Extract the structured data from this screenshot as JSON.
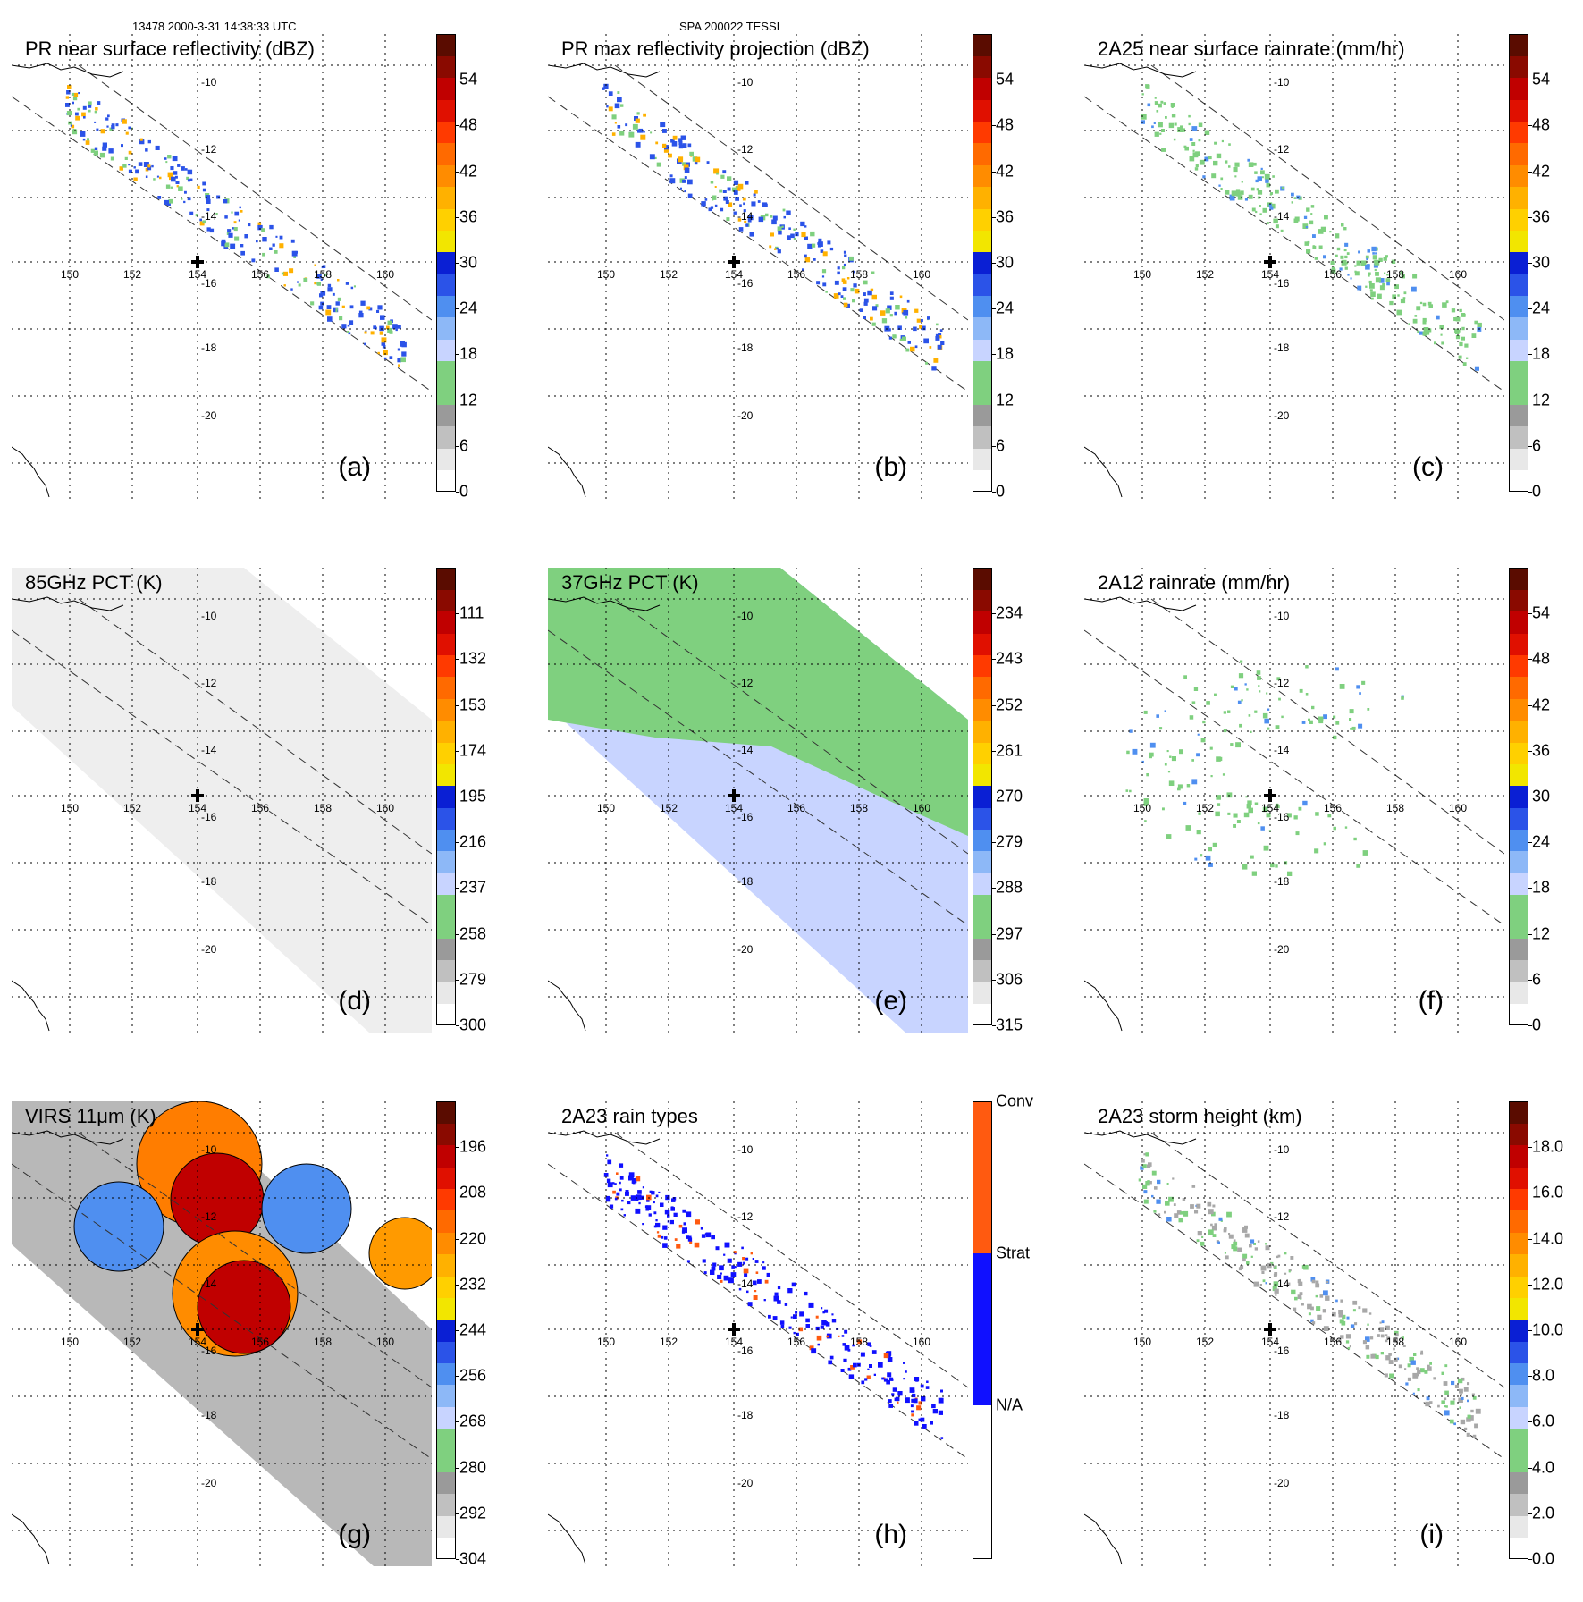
{
  "header": {
    "left": "13478 2000-3-31 14:38:33 UTC",
    "center": "SPA 200022 TESSI"
  },
  "axes": {
    "lat_labels": [
      "-10",
      "-12",
      "-14",
      "-16",
      "-18",
      "-20"
    ],
    "lon_labels": [
      "150",
      "152",
      "154",
      "156",
      "158",
      "160"
    ]
  },
  "panels": [
    {
      "id": "a",
      "title": "PR near surface reflectivity (dBZ)",
      "label": "(a)",
      "ticks": [
        "0",
        "6",
        "12",
        "18",
        "24",
        "30",
        "36",
        "42",
        "48",
        "54"
      ]
    },
    {
      "id": "b",
      "title": "PR max reflectivity projection (dBZ)",
      "label": "(b)",
      "ticks": [
        "0",
        "6",
        "12",
        "18",
        "24",
        "30",
        "36",
        "42",
        "48",
        "54"
      ]
    },
    {
      "id": "c",
      "title": "2A25 near surface rainrate (mm/hr)",
      "label": "(c)",
      "ticks": [
        "0",
        "6",
        "12",
        "18",
        "24",
        "30",
        "36",
        "42",
        "48",
        "54"
      ]
    },
    {
      "id": "d",
      "title": "85GHz PCT (K)",
      "label": "(d)",
      "ticks": [
        "300",
        "279",
        "258",
        "237",
        "216",
        "195",
        "174",
        "153",
        "132",
        "111"
      ]
    },
    {
      "id": "e",
      "title": "37GHz PCT (K)",
      "label": "(e)",
      "ticks": [
        "315",
        "306",
        "297",
        "288",
        "279",
        "270",
        "261",
        "252",
        "243",
        "234"
      ]
    },
    {
      "id": "f",
      "title": "2A12 rainrate (mm/hr)",
      "label": "(f)",
      "ticks": [
        "0",
        "6",
        "12",
        "18",
        "24",
        "30",
        "36",
        "42",
        "48",
        "54"
      ]
    },
    {
      "id": "g",
      "title": "VIRS 11μm (K)",
      "label": "(g)",
      "ticks": [
        "304",
        "292",
        "280",
        "268",
        "256",
        "244",
        "232",
        "220",
        "208",
        "196"
      ]
    },
    {
      "id": "h",
      "title": "2A23 rain types",
      "label": "(h)",
      "ticks": [
        "Conv",
        "Strat",
        "N/A"
      ]
    },
    {
      "id": "i",
      "title": "2A23 storm height (km)",
      "label": "(i)",
      "ticks": [
        "0.0",
        "2.0",
        "4.0",
        "6.0",
        "8.0",
        "10.0",
        "12.0",
        "14.0",
        "16.0",
        "18.0"
      ]
    }
  ],
  "colors": {
    "scale": [
      "#ffffff",
      "#d9d9d9",
      "#a8a8a8",
      "#7fd07f",
      "#c8d4ff",
      "#63a3f5",
      "#2b53e8",
      "#0a1fd4",
      "#f2e600",
      "#ffb100",
      "#ff7d00",
      "#ff3a00",
      "#e01000",
      "#a80000",
      "#5a0c00"
    ],
    "raintype_conv": "#ff5a10",
    "raintype_strat": "#1010ff"
  }
}
